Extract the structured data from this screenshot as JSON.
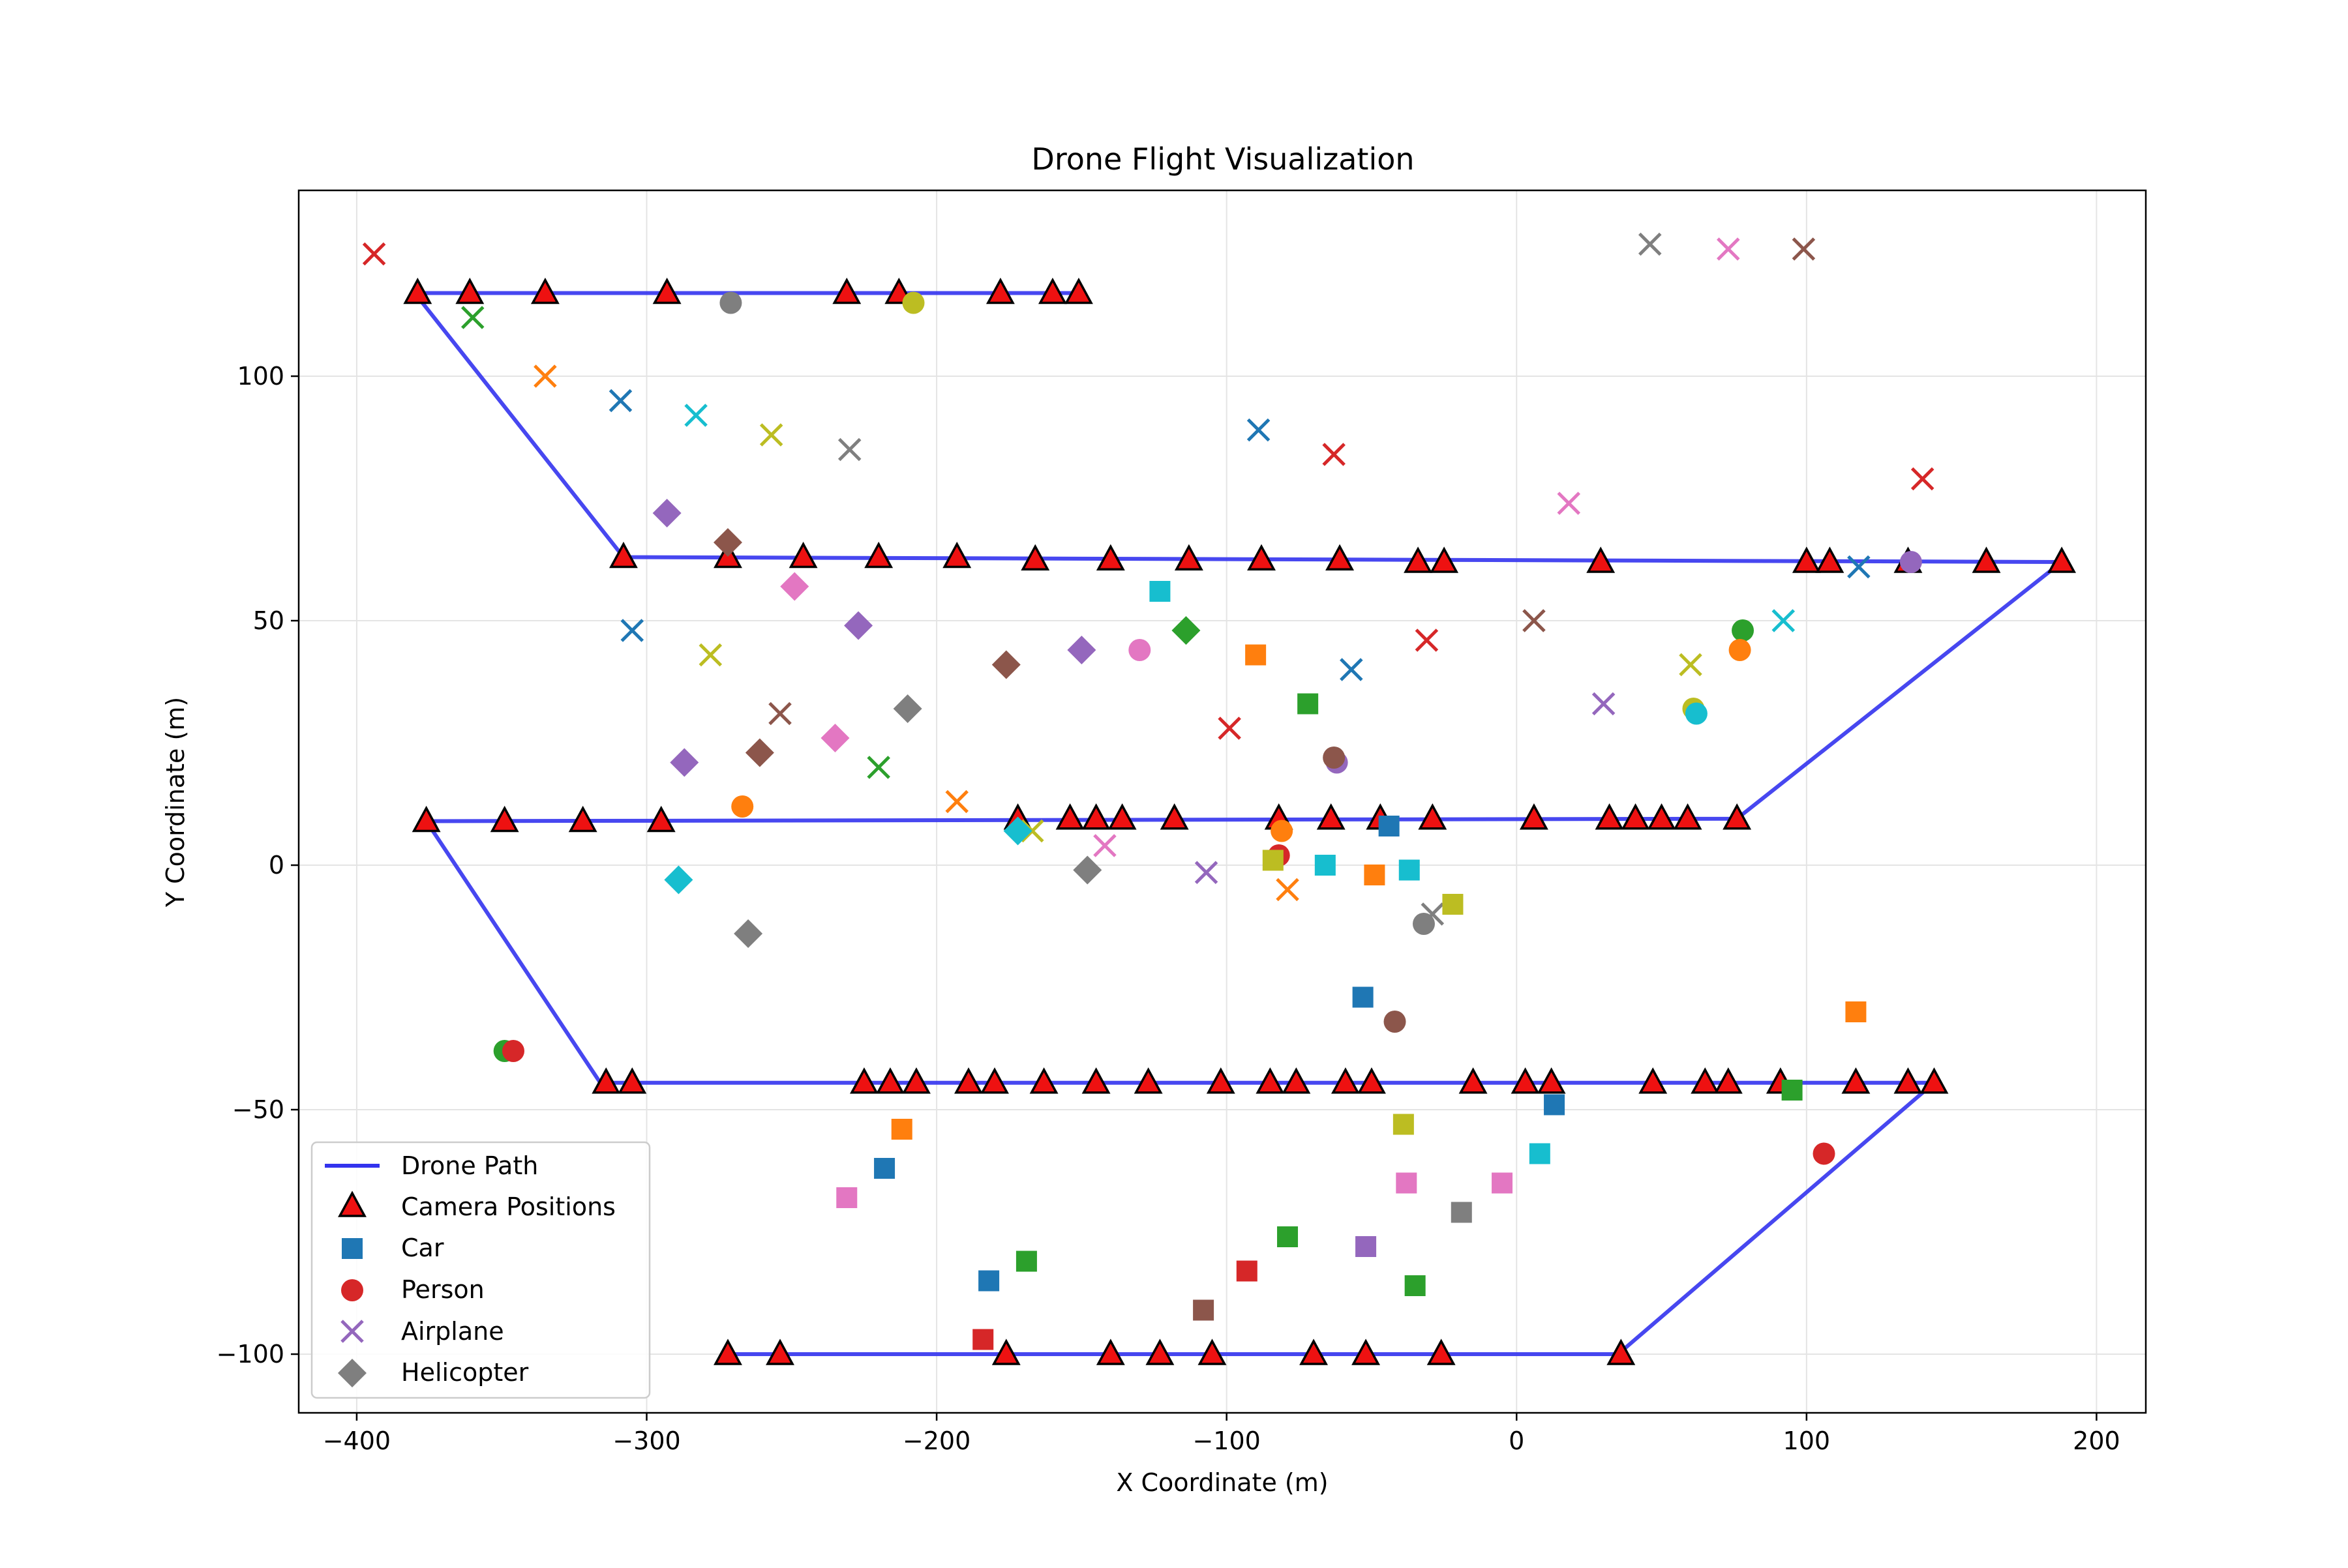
{
  "chart_data": {
    "type": "scatter",
    "title": "Drone Flight Visualization",
    "xlabel": "X Coordinate (m)",
    "ylabel": "Y Coordinate (m)",
    "xlim": [
      -420,
      217
    ],
    "ylim": [
      -112,
      138
    ],
    "xticks": [
      -400,
      -300,
      -200,
      -100,
      0,
      100,
      200
    ],
    "yticks": [
      -100,
      -50,
      0,
      50,
      100
    ],
    "xtick_labels": [
      "−400",
      "−300",
      "−200",
      "−100",
      "0",
      "100",
      "200"
    ],
    "ytick_labels": [
      "−100",
      "−50",
      "0",
      "50",
      "100"
    ],
    "grid": true,
    "legend_position": "lower-left",
    "legend": {
      "path": "Drone Path",
      "cameras": "Camera Positions",
      "car": "Car",
      "person": "Person",
      "airplane": "Airplane",
      "helicopter": "Helicopter"
    },
    "path_color": "#3333ee",
    "camera_color": "#ee1111",
    "drone_path": [
      [
        -150,
        117
      ],
      [
        -380,
        117
      ],
      [
        -308,
        63
      ],
      [
        188,
        62
      ],
      [
        76,
        9.5
      ],
      [
        -376,
        9
      ],
      [
        -316,
        -44.5
      ],
      [
        144,
        -44.5
      ],
      [
        35,
        -100
      ],
      [
        -272,
        -100
      ]
    ],
    "camera_positions": [
      [
        -379,
        117
      ],
      [
        -361,
        117
      ],
      [
        -335,
        117
      ],
      [
        -293,
        117
      ],
      [
        -231,
        117
      ],
      [
        -213,
        117
      ],
      [
        -178,
        117
      ],
      [
        -160,
        117
      ],
      [
        -151,
        117
      ],
      [
        -308,
        63
      ],
      [
        -272,
        63
      ],
      [
        -246,
        63
      ],
      [
        -220,
        63
      ],
      [
        -193,
        63
      ],
      [
        -166,
        62.5
      ],
      [
        -140,
        62.5
      ],
      [
        -113,
        62.5
      ],
      [
        -88,
        62.5
      ],
      [
        -61,
        62.5
      ],
      [
        -34,
        62
      ],
      [
        -25,
        62
      ],
      [
        29,
        62
      ],
      [
        100,
        62
      ],
      [
        108,
        62
      ],
      [
        135,
        62
      ],
      [
        162,
        62
      ],
      [
        188,
        62
      ],
      [
        -376,
        9
      ],
      [
        -349,
        9
      ],
      [
        -322,
        9
      ],
      [
        -295,
        9
      ],
      [
        -172,
        9.5
      ],
      [
        -154,
        9.5
      ],
      [
        -145,
        9.5
      ],
      [
        -136,
        9.5
      ],
      [
        -118,
        9.5
      ],
      [
        -82,
        9.5
      ],
      [
        -64,
        9.5
      ],
      [
        -47,
        9.5
      ],
      [
        -29,
        9.5
      ],
      [
        6,
        9.5
      ],
      [
        32,
        9.5
      ],
      [
        41,
        9.5
      ],
      [
        50,
        9.5
      ],
      [
        59,
        9.5
      ],
      [
        76,
        9.5
      ],
      [
        -314,
        -44.5
      ],
      [
        -305,
        -44.5
      ],
      [
        -225,
        -44.5
      ],
      [
        -216,
        -44.5
      ],
      [
        -207,
        -44.5
      ],
      [
        -189,
        -44.5
      ],
      [
        -180,
        -44.5
      ],
      [
        -163,
        -44.5
      ],
      [
        -145,
        -44.5
      ],
      [
        -127,
        -44.5
      ],
      [
        -102,
        -44.5
      ],
      [
        -85,
        -44.5
      ],
      [
        -76,
        -44.5
      ],
      [
        -59,
        -44.5
      ],
      [
        -50,
        -44.5
      ],
      [
        -15,
        -44.5
      ],
      [
        3,
        -44.5
      ],
      [
        12,
        -44.5
      ],
      [
        47,
        -44.5
      ],
      [
        65,
        -44.5
      ],
      [
        73,
        -44.5
      ],
      [
        91,
        -44.5
      ],
      [
        117,
        -44.5
      ],
      [
        135,
        -44.5
      ],
      [
        144,
        -44.5
      ],
      [
        -272,
        -100
      ],
      [
        -254,
        -100
      ],
      [
        -176,
        -100
      ],
      [
        -140,
        -100
      ],
      [
        -123,
        -100
      ],
      [
        -105,
        -100
      ],
      [
        -70,
        -100
      ],
      [
        -52,
        -100
      ],
      [
        -26,
        -100
      ],
      [
        36,
        -100
      ]
    ],
    "detections": [
      {
        "type": "airplane",
        "color": "#d62728",
        "x": -394,
        "y": 125
      },
      {
        "type": "airplane",
        "color": "#2ca02c",
        "x": -360,
        "y": 112
      },
      {
        "type": "airplane",
        "color": "#ff7f0e",
        "x": -335,
        "y": 100
      },
      {
        "type": "airplane",
        "color": "#1f77b4",
        "x": -309,
        "y": 95
      },
      {
        "type": "airplane",
        "color": "#17becf",
        "x": -283,
        "y": 92
      },
      {
        "type": "airplane",
        "color": "#bcbd22",
        "x": -257,
        "y": 88
      },
      {
        "type": "airplane",
        "color": "#7f7f7f",
        "x": -230,
        "y": 85
      },
      {
        "type": "airplane",
        "color": "#1f77b4",
        "x": -305,
        "y": 48
      },
      {
        "type": "airplane",
        "color": "#bcbd22",
        "x": -278,
        "y": 43
      },
      {
        "type": "airplane",
        "color": "#8c564b",
        "x": -254,
        "y": 31
      },
      {
        "type": "airplane",
        "color": "#2ca02c",
        "x": -220,
        "y": 20
      },
      {
        "type": "airplane",
        "color": "#ff7f0e",
        "x": -193,
        "y": 13
      },
      {
        "type": "airplane",
        "color": "#bcbd22",
        "x": -167,
        "y": 7
      },
      {
        "type": "airplane",
        "color": "#e377c2",
        "x": -142,
        "y": 4
      },
      {
        "type": "airplane",
        "color": "#9467bd",
        "x": -107,
        "y": -1.5
      },
      {
        "type": "airplane",
        "color": "#1f77b4",
        "x": -89,
        "y": 89
      },
      {
        "type": "airplane",
        "color": "#d62728",
        "x": -63,
        "y": 84
      },
      {
        "type": "airplane",
        "color": "#d62728",
        "x": -99,
        "y": 28
      },
      {
        "type": "airplane",
        "color": "#1f77b4",
        "x": -57,
        "y": 40
      },
      {
        "type": "airplane",
        "color": "#d62728",
        "x": -31,
        "y": 46
      },
      {
        "type": "airplane",
        "color": "#ff7f0e",
        "x": -79,
        "y": -5
      },
      {
        "type": "airplane",
        "color": "#7f7f7f",
        "x": -29,
        "y": -10
      },
      {
        "type": "airplane",
        "color": "#8c564b",
        "x": 6,
        "y": 50
      },
      {
        "type": "airplane",
        "color": "#e377c2",
        "x": 18,
        "y": 74
      },
      {
        "type": "airplane",
        "color": "#9467bd",
        "x": 30,
        "y": 33
      },
      {
        "type": "airplane",
        "color": "#7f7f7f",
        "x": 46,
        "y": 127
      },
      {
        "type": "airplane",
        "color": "#e377c2",
        "x": 73,
        "y": 126
      },
      {
        "type": "airplane",
        "color": "#8c564b",
        "x": 99,
        "y": 126
      },
      {
        "type": "airplane",
        "color": "#bcbd22",
        "x": 60,
        "y": 41
      },
      {
        "type": "airplane",
        "color": "#17becf",
        "x": 92,
        "y": 50
      },
      {
        "type": "airplane",
        "color": "#1f77b4",
        "x": 118,
        "y": 61
      },
      {
        "type": "airplane",
        "color": "#d62728",
        "x": 140,
        "y": 79
      },
      {
        "type": "person",
        "color": "#7f7f7f",
        "x": -271,
        "y": 115
      },
      {
        "type": "person",
        "color": "#bcbd22",
        "x": -208,
        "y": 115
      },
      {
        "type": "person",
        "color": "#ff7f0e",
        "x": -267,
        "y": 12
      },
      {
        "type": "person",
        "color": "#e377c2",
        "x": -130,
        "y": 44
      },
      {
        "type": "person",
        "color": "#9467bd",
        "x": -62,
        "y": 21
      },
      {
        "type": "person",
        "color": "#8c564b",
        "x": -63,
        "y": 22
      },
      {
        "type": "person",
        "color": "#ff7f0e",
        "x": -81,
        "y": 7
      },
      {
        "type": "person",
        "color": "#d62728",
        "x": -82,
        "y": 2
      },
      {
        "type": "person",
        "color": "#7f7f7f",
        "x": -32,
        "y": -12
      },
      {
        "type": "person",
        "color": "#8c564b",
        "x": -42,
        "y": -32
      },
      {
        "type": "person",
        "color": "#2ca02c",
        "x": -349,
        "y": -38
      },
      {
        "type": "person",
        "color": "#d62728",
        "x": -346,
        "y": -38
      },
      {
        "type": "person",
        "color": "#bcbd22",
        "x": 61,
        "y": 32
      },
      {
        "type": "person",
        "color": "#17becf",
        "x": 62,
        "y": 31
      },
      {
        "type": "person",
        "color": "#2ca02c",
        "x": 78,
        "y": 48
      },
      {
        "type": "person",
        "color": "#ff7f0e",
        "x": 77,
        "y": 44
      },
      {
        "type": "person",
        "color": "#9467bd",
        "x": 136,
        "y": 62
      },
      {
        "type": "person",
        "color": "#d62728",
        "x": 106,
        "y": -59
      },
      {
        "type": "helicopter",
        "color": "#9467bd",
        "x": -293,
        "y": 72
      },
      {
        "type": "helicopter",
        "color": "#8c564b",
        "x": -272,
        "y": 66
      },
      {
        "type": "helicopter",
        "color": "#e377c2",
        "x": -249,
        "y": 57
      },
      {
        "type": "helicopter",
        "color": "#9467bd",
        "x": -227,
        "y": 49
      },
      {
        "type": "helicopter",
        "color": "#7f7f7f",
        "x": -210,
        "y": 32
      },
      {
        "type": "helicopter",
        "color": "#e377c2",
        "x": -235,
        "y": 26
      },
      {
        "type": "helicopter",
        "color": "#8c564b",
        "x": -261,
        "y": 23
      },
      {
        "type": "helicopter",
        "color": "#9467bd",
        "x": -287,
        "y": 21
      },
      {
        "type": "helicopter",
        "color": "#17becf",
        "x": -289,
        "y": -3
      },
      {
        "type": "helicopter",
        "color": "#7f7f7f",
        "x": -265,
        "y": -14
      },
      {
        "type": "helicopter",
        "color": "#8c564b",
        "x": -176,
        "y": 41
      },
      {
        "type": "helicopter",
        "color": "#9467bd",
        "x": -150,
        "y": 44
      },
      {
        "type": "helicopter",
        "color": "#2ca02c",
        "x": -114,
        "y": 48
      },
      {
        "type": "helicopter",
        "color": "#17becf",
        "x": -172,
        "y": 7
      },
      {
        "type": "helicopter",
        "color": "#7f7f7f",
        "x": -148,
        "y": -1
      },
      {
        "type": "car",
        "color": "#17becf",
        "x": -123,
        "y": 56
      },
      {
        "type": "car",
        "color": "#ff7f0e",
        "x": -90,
        "y": 43
      },
      {
        "type": "car",
        "color": "#2ca02c",
        "x": -72,
        "y": 33
      },
      {
        "type": "car",
        "color": "#bcbd22",
        "x": -84,
        "y": 1
      },
      {
        "type": "car",
        "color": "#17becf",
        "x": -66,
        "y": 0
      },
      {
        "type": "car",
        "color": "#ff7f0e",
        "x": -49,
        "y": -2
      },
      {
        "type": "car",
        "color": "#17becf",
        "x": -37,
        "y": -1
      },
      {
        "type": "car",
        "color": "#1f77b4",
        "x": -44,
        "y": 8
      },
      {
        "type": "car",
        "color": "#bcbd22",
        "x": -22,
        "y": -8
      },
      {
        "type": "car",
        "color": "#1f77b4",
        "x": -53,
        "y": -27
      },
      {
        "type": "car",
        "color": "#bcbd22",
        "x": -39,
        "y": -53
      },
      {
        "type": "car",
        "color": "#e377c2",
        "x": -38,
        "y": -65
      },
      {
        "type": "car",
        "color": "#7f7f7f",
        "x": -19,
        "y": -71
      },
      {
        "type": "car",
        "color": "#e377c2",
        "x": -5,
        "y": -65
      },
      {
        "type": "car",
        "color": "#17becf",
        "x": 8,
        "y": -59
      },
      {
        "type": "car",
        "color": "#1f77b4",
        "x": 13,
        "y": -49
      },
      {
        "type": "car",
        "color": "#2ca02c",
        "x": 95,
        "y": -46
      },
      {
        "type": "car",
        "color": "#ff7f0e",
        "x": 117,
        "y": -30
      },
      {
        "type": "car",
        "color": "#ff7f0e",
        "x": -212,
        "y": -54
      },
      {
        "type": "car",
        "color": "#1f77b4",
        "x": -218,
        "y": -62
      },
      {
        "type": "car",
        "color": "#e377c2",
        "x": -231,
        "y": -68
      },
      {
        "type": "car",
        "color": "#1f77b4",
        "x": -182,
        "y": -85
      },
      {
        "type": "car",
        "color": "#2ca02c",
        "x": -169,
        "y": -81
      },
      {
        "type": "car",
        "color": "#d62728",
        "x": -184,
        "y": -97
      },
      {
        "type": "car",
        "color": "#8c564b",
        "x": -108,
        "y": -91
      },
      {
        "type": "car",
        "color": "#d62728",
        "x": -93,
        "y": -83
      },
      {
        "type": "car",
        "color": "#2ca02c",
        "x": -79,
        "y": -76
      },
      {
        "type": "car",
        "color": "#9467bd",
        "x": -52,
        "y": -78
      },
      {
        "type": "car",
        "color": "#2ca02c",
        "x": -35,
        "y": -86
      }
    ]
  }
}
